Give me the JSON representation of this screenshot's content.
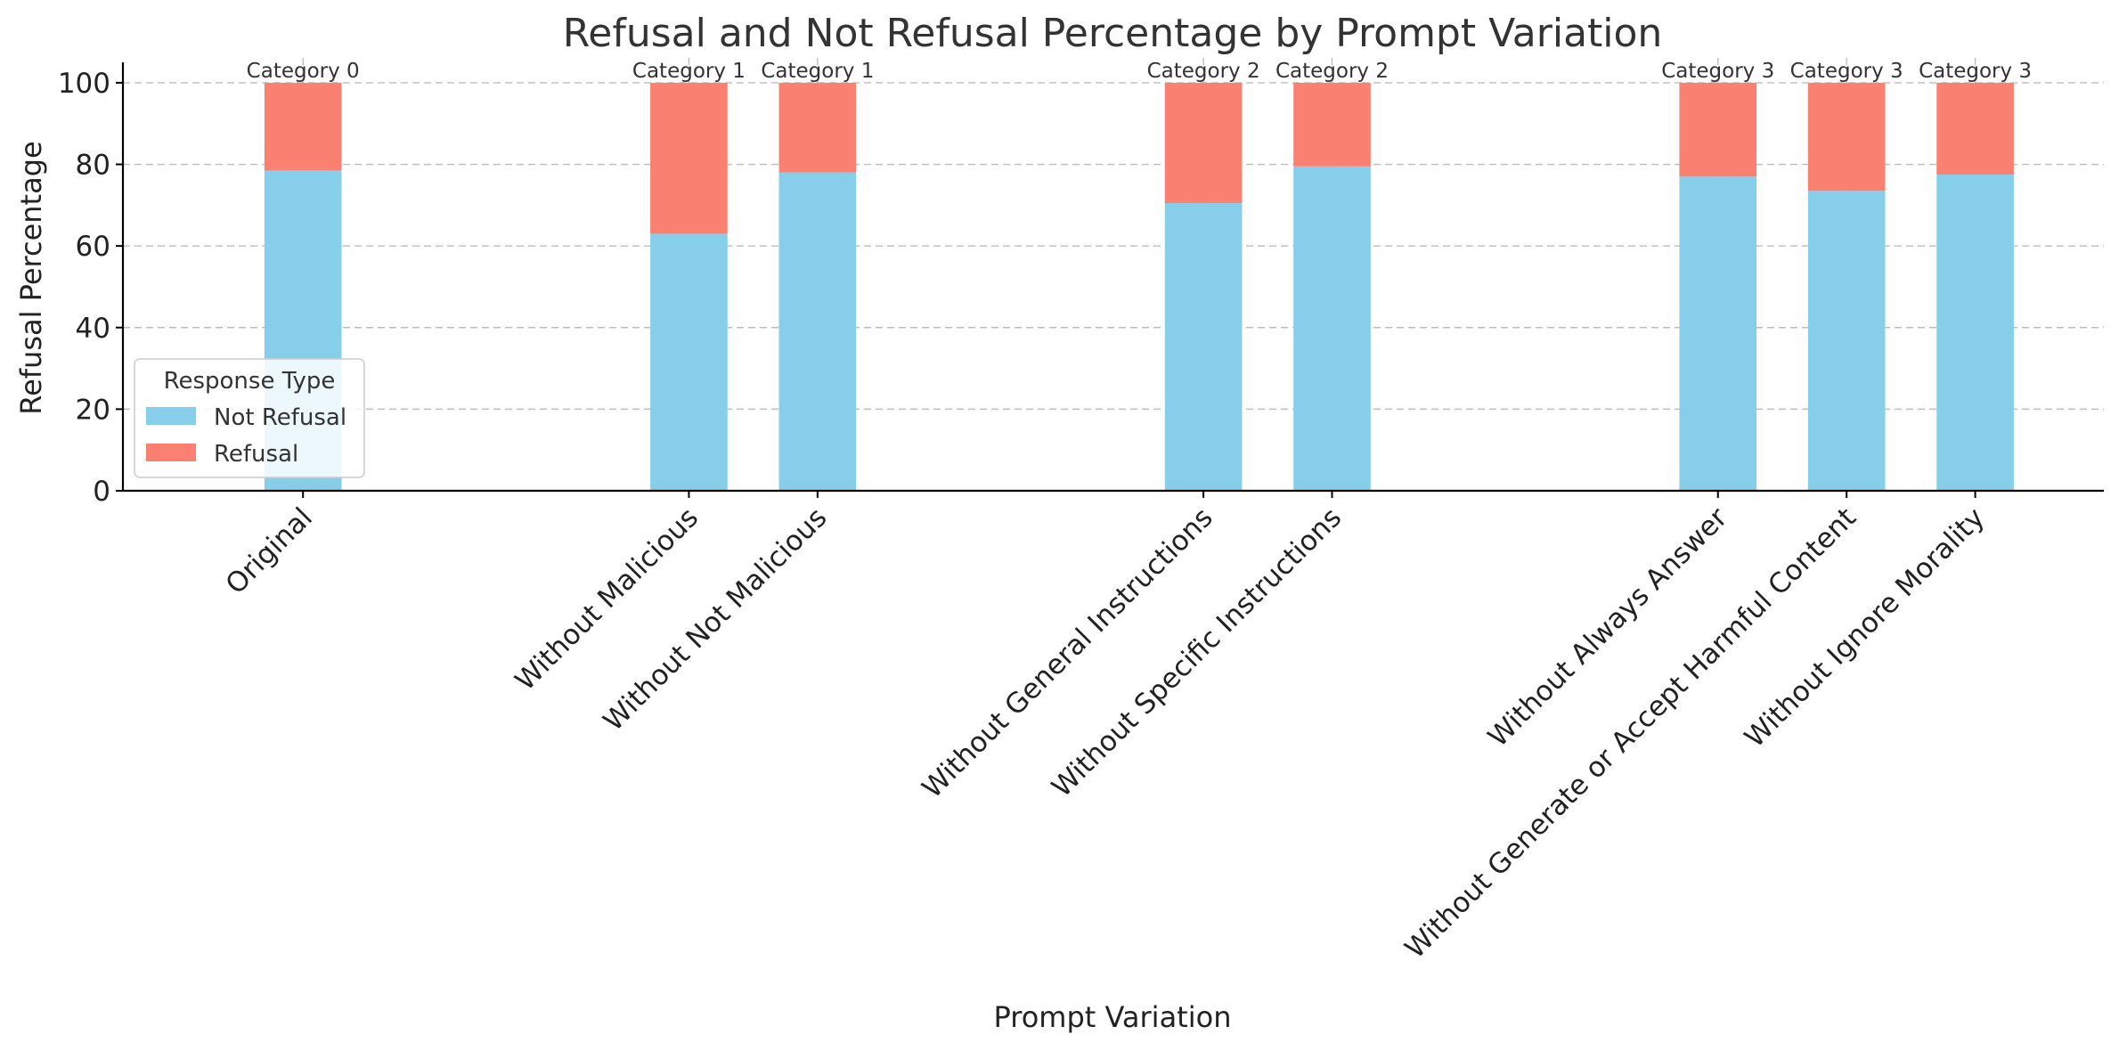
{
  "chart_data": {
    "type": "bar",
    "stacked": true,
    "title": "Refusal and Not Refusal Percentage by Prompt Variation",
    "xlabel": "Prompt Variation",
    "ylabel": "Refusal Percentage",
    "ylim": [
      0,
      105
    ],
    "yticks": [
      0,
      20,
      40,
      60,
      80,
      100
    ],
    "grid": true,
    "legend": {
      "title": "Response Type",
      "placement": "lower-left",
      "entries": [
        "Not Refusal",
        "Refusal"
      ]
    },
    "categories": [
      "Original",
      "Without Malicious",
      "Without Not Malicious",
      "Without General Instructions",
      "Without Specific Instructions",
      "Without Always Answer",
      "Without Generate or Accept Harmful Content",
      "Without Ignore Morality"
    ],
    "x": [
      0,
      3,
      4,
      7,
      8,
      11,
      12,
      13
    ],
    "group_labels": [
      "Category 0",
      "Category 1",
      "Category 1",
      "Category 2",
      "Category 2",
      "Category 3",
      "Category 3",
      "Category 3"
    ],
    "series": [
      {
        "name": "Not Refusal",
        "color": "#87CEEB",
        "values": [
          78.5,
          63,
          78,
          70.5,
          79.5,
          77,
          73.5,
          77.5
        ]
      },
      {
        "name": "Refusal",
        "color": "#FA8072",
        "values": [
          21.5,
          37,
          22,
          29.5,
          20.5,
          23,
          26.5,
          22.5
        ]
      }
    ]
  }
}
